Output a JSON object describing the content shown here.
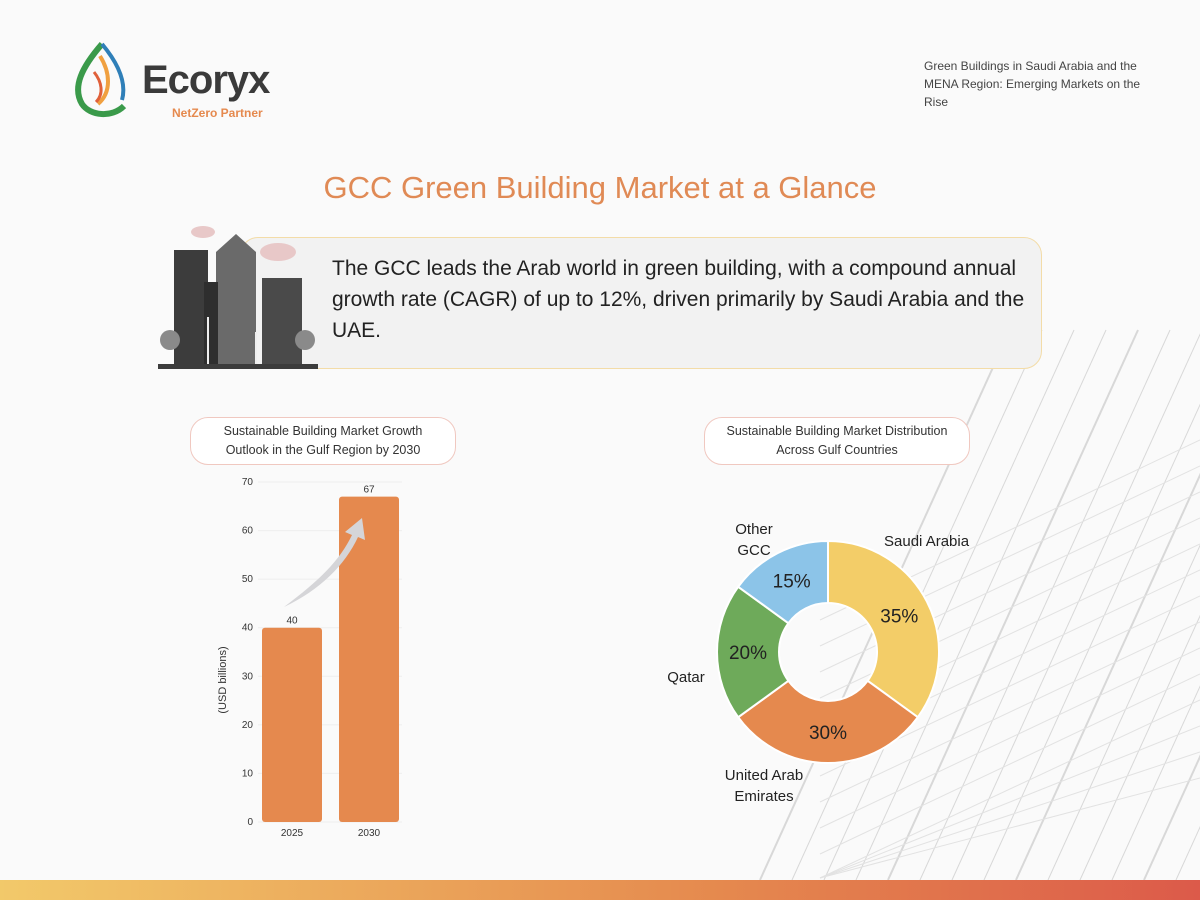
{
  "logo": {
    "name": "Ecoryx",
    "tagline": "NetZero Partner"
  },
  "report_title": "Green Buildings in Saudi Arabia and the MENA Region: Emerging Markets on the Rise",
  "page_title": "GCC Green Building Market at a Glance",
  "intro": "The GCC leads the Arab world in green building, with a compound annual growth rate (CAGR) of up to 12%, driven primarily by Saudi Arabia and the UAE.",
  "colors": {
    "accent": "#e5894e",
    "saudi": "#f3cd68",
    "uae": "#e5894e",
    "qatar": "#6eaa5a",
    "other": "#8cc4e8"
  },
  "chart_data": [
    {
      "type": "bar",
      "title": "Sustainable Building Market Growth Outlook in the Gulf Region by 2030",
      "categories": [
        "2025",
        "2030"
      ],
      "values": [
        40,
        67
      ],
      "ylabel": "(USD billions)",
      "xlabel": "",
      "ylim": [
        0,
        70
      ],
      "yticks": [
        0,
        10,
        20,
        30,
        40,
        50,
        60,
        70
      ],
      "grid": true
    },
    {
      "type": "pie",
      "title": "Sustainable Building Market Distribution Across Gulf Countries",
      "labels": [
        "Saudi Arabia",
        "United Arab Emirates",
        "Qatar",
        "Other GCC"
      ],
      "values": [
        35,
        30,
        20,
        15
      ],
      "value_labels": [
        "35%",
        "30%",
        "20%",
        "15%"
      ],
      "donut": true
    }
  ]
}
